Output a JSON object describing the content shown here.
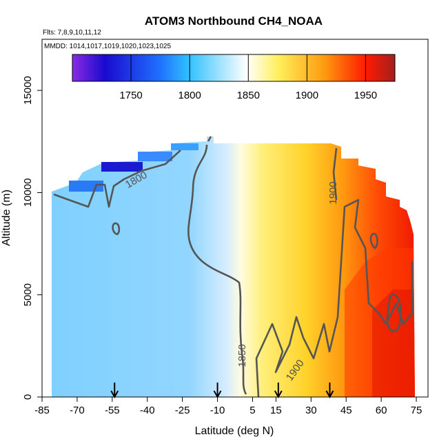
{
  "chart_data": {
    "type": "heatmap",
    "title": "ATOM3 Northbound CH4_NOAA",
    "flights_label": "Flts: 7,8,9,10,11,12",
    "dates_label": "MMDD: 1014,1017,1019,1020,1023,1025",
    "xlabel": "Latitude (deg N)",
    "ylabel": "Altitude (m)",
    "xlim": [
      -85,
      80
    ],
    "ylim": [
      0,
      17500
    ],
    "x_ticks": [
      -85,
      -70,
      -55,
      -40,
      -25,
      -10,
      5,
      15,
      30,
      45,
      60,
      75
    ],
    "y_ticks": [
      0,
      5000,
      10000,
      15000
    ],
    "colorbar": {
      "min": 1700,
      "max": 1975,
      "ticks": [
        1750,
        1800,
        1850,
        1900,
        1950
      ],
      "colors": [
        "#8a2be2",
        "#1a0acf",
        "#1f6fff",
        "#2fc0ff",
        "#ffffff",
        "#ffef5a",
        "#ff9b10",
        "#ff1a00",
        "#a31f1f"
      ]
    },
    "contour_levels": [
      1800,
      1850,
      1900
    ],
    "contour_labels": [
      "1800",
      "1850",
      "1900",
      "1900"
    ],
    "profile_markers_lat": [
      -54,
      -10,
      16,
      38
    ],
    "zones": [
      {
        "lat_min": -84,
        "lat_max": -35,
        "alt_top": 10300,
        "value": 1818
      },
      {
        "lat_min": -35,
        "lat_max": -23,
        "alt_top": 11500,
        "value": 1815
      },
      {
        "lat_min": -23,
        "lat_max": -12,
        "alt_top": 12900,
        "value": 1826
      },
      {
        "lat_min": -12,
        "lat_max": -5,
        "alt_top": 13300,
        "value": 1840
      },
      {
        "lat_min": -5,
        "lat_max": 5,
        "alt_top": 13000,
        "value": 1853
      },
      {
        "lat_min": 5,
        "lat_max": 20,
        "alt_top": 13000,
        "value": 1870
      },
      {
        "lat_min": 20,
        "lat_max": 40,
        "alt_top": 13000,
        "value": 1890
      },
      {
        "lat_min": 40,
        "lat_max": 55,
        "alt_top": 12500,
        "value": 1912
      },
      {
        "lat_min": 55,
        "lat_max": 68,
        "alt_top": 10500,
        "value": 1935
      },
      {
        "lat_min": 68,
        "lat_max": 78,
        "alt_top": 9500,
        "value": 1950
      }
    ]
  }
}
